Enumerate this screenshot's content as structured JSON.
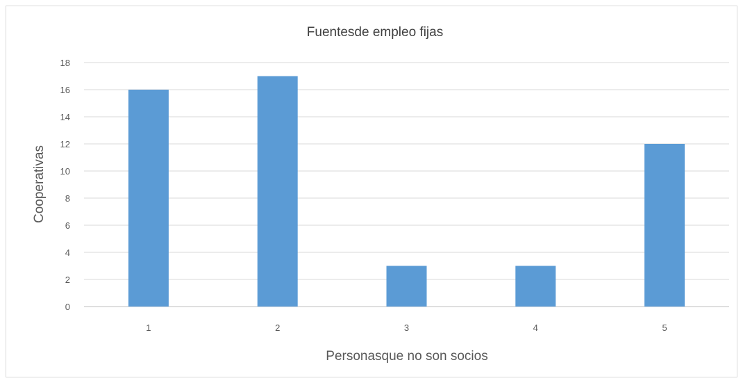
{
  "chart_data": {
    "type": "bar",
    "title": "Fuentesde empleo fijas",
    "xlabel": "Personasque no son socios",
    "ylabel": "Cooperativas",
    "categories": [
      "1",
      "2",
      "3",
      "4",
      "5"
    ],
    "values": [
      16,
      17,
      3,
      3,
      12
    ],
    "ylim": [
      0,
      18
    ],
    "yticks": [
      0,
      2,
      4,
      6,
      8,
      10,
      12,
      14,
      16,
      18
    ],
    "grid": true,
    "legend": "none",
    "bar_color": "#5b9bd5"
  }
}
